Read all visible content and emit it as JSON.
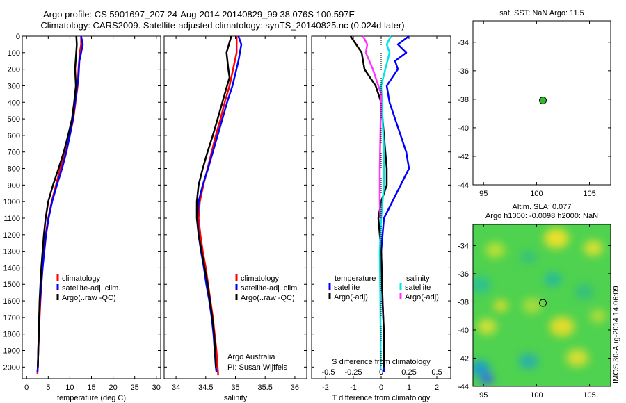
{
  "header": {
    "line1": "Argo profile: CS 5901697_207 24-Aug-2014 20140829_99 38.076S 100.597E",
    "line2": "Climatology: CARS2009. Satellite-adjusted climatology: synTS_20140825.nc (0.024d later)"
  },
  "credit": "IMOS 30-Aug-2014 14:06:09",
  "colors": {
    "red": "#ff0000",
    "blue": "#0000ff",
    "black": "#000000",
    "cyan": "#00e5e5",
    "magenta": "#ff33ff"
  },
  "chart_data": [
    {
      "type": "line",
      "id": "temperature",
      "xlabel": "temperature (deg C)",
      "xlim": [
        -1,
        31
      ],
      "xticks": [
        0,
        5,
        10,
        15,
        20,
        25,
        30
      ],
      "ylim": [
        2070,
        0
      ],
      "yticks": [
        0,
        100,
        200,
        300,
        400,
        500,
        600,
        700,
        800,
        900,
        1000,
        1100,
        1200,
        1300,
        1400,
        1500,
        1600,
        1700,
        1800,
        1900,
        2000
      ],
      "legend": [
        "climatology",
        "satellite-adj. clim.",
        "Argo(..raw -QC)"
      ],
      "series": [
        {
          "name": "climatology",
          "color": "red",
          "points": [
            [
              12.6,
              0
            ],
            [
              12.6,
              50
            ],
            [
              12.3,
              100
            ],
            [
              12.0,
              200
            ],
            [
              11.8,
              300
            ],
            [
              11.3,
              400
            ],
            [
              10.8,
              500
            ],
            [
              10.0,
              600
            ],
            [
              9.0,
              700
            ],
            [
              7.8,
              800
            ],
            [
              6.8,
              900
            ],
            [
              5.8,
              1000
            ],
            [
              5.0,
              1100
            ],
            [
              4.4,
              1200
            ],
            [
              4.0,
              1300
            ],
            [
              3.7,
              1400
            ],
            [
              3.4,
              1500
            ],
            [
              3.2,
              1600
            ],
            [
              3.0,
              1700
            ],
            [
              2.9,
              1800
            ],
            [
              2.7,
              1900
            ],
            [
              2.6,
              2000
            ],
            [
              2.5,
              2040
            ]
          ]
        },
        {
          "name": "satellite-adj. clim.",
          "color": "blue",
          "points": [
            [
              12.6,
              0
            ],
            [
              13.0,
              50
            ],
            [
              12.2,
              150
            ],
            [
              12.0,
              250
            ],
            [
              11.7,
              300
            ],
            [
              11.2,
              400
            ],
            [
              10.7,
              500
            ],
            [
              10.0,
              600
            ],
            [
              9.2,
              700
            ],
            [
              8.2,
              800
            ],
            [
              7.0,
              900
            ],
            [
              5.9,
              1000
            ],
            [
              5.1,
              1100
            ],
            [
              4.5,
              1200
            ],
            [
              4.1,
              1300
            ],
            [
              3.7,
              1400
            ],
            [
              3.4,
              1500
            ],
            [
              3.1,
              1600
            ],
            [
              2.9,
              1700
            ],
            [
              2.8,
              1800
            ],
            [
              2.7,
              1900
            ],
            [
              2.6,
              2000
            ],
            [
              2.5,
              2030
            ]
          ]
        },
        {
          "name": "Argo(..raw -QC)",
          "color": "black",
          "points": [
            [
              11.5,
              0
            ],
            [
              11.6,
              50
            ],
            [
              11.2,
              200
            ],
            [
              11.4,
              300
            ],
            [
              11.0,
              400
            ],
            [
              10.5,
              500
            ],
            [
              9.6,
              600
            ],
            [
              8.6,
              700
            ],
            [
              7.4,
              800
            ],
            [
              6.1,
              900
            ],
            [
              5.0,
              1000
            ],
            [
              4.4,
              1100
            ],
            [
              4.0,
              1200
            ],
            [
              3.7,
              1300
            ],
            [
              3.4,
              1400
            ],
            [
              3.2,
              1500
            ],
            [
              3.0,
              1600
            ],
            [
              2.9,
              1700
            ],
            [
              2.8,
              1800
            ],
            [
              2.7,
              1900
            ],
            [
              2.6,
              2000
            ]
          ]
        }
      ]
    },
    {
      "type": "line",
      "id": "salinity",
      "xlabel": "salinity",
      "xlim": [
        33.8,
        36.2
      ],
      "xticks": [
        34,
        34.5,
        35,
        35.5,
        36
      ],
      "ylim": [
        2070,
        0
      ],
      "legend": [
        "climatology",
        "satellite-adj. clim.",
        "Argo(..raw -QC)"
      ],
      "annotation": [
        "Argo Australia",
        "PI: Susan Wijffels"
      ],
      "series": [
        {
          "name": "climatology",
          "color": "red",
          "points": [
            [
              35.02,
              0
            ],
            [
              35.02,
              100
            ],
            [
              34.96,
              200
            ],
            [
              34.9,
              300
            ],
            [
              34.82,
              400
            ],
            [
              34.75,
              500
            ],
            [
              34.67,
              600
            ],
            [
              34.6,
              700
            ],
            [
              34.53,
              800
            ],
            [
              34.46,
              900
            ],
            [
              34.4,
              1000
            ],
            [
              34.38,
              1100
            ],
            [
              34.41,
              1200
            ],
            [
              34.45,
              1300
            ],
            [
              34.5,
              1400
            ],
            [
              34.54,
              1500
            ],
            [
              34.58,
              1600
            ],
            [
              34.62,
              1700
            ],
            [
              34.65,
              1800
            ],
            [
              34.68,
              1900
            ],
            [
              34.7,
              2000
            ],
            [
              34.71,
              2050
            ]
          ]
        },
        {
          "name": "satellite-adj. clim.",
          "color": "blue",
          "points": [
            [
              35.05,
              0
            ],
            [
              35.1,
              50
            ],
            [
              35.05,
              150
            ],
            [
              34.95,
              300
            ],
            [
              34.86,
              400
            ],
            [
              34.78,
              500
            ],
            [
              34.7,
              600
            ],
            [
              34.62,
              700
            ],
            [
              34.54,
              800
            ],
            [
              34.45,
              900
            ],
            [
              34.38,
              1000
            ],
            [
              34.36,
              1100
            ],
            [
              34.38,
              1200
            ],
            [
              34.42,
              1300
            ],
            [
              34.47,
              1400
            ],
            [
              34.51,
              1500
            ],
            [
              34.56,
              1600
            ],
            [
              34.6,
              1700
            ],
            [
              34.63,
              1800
            ],
            [
              34.65,
              1900
            ],
            [
              34.67,
              2000
            ],
            [
              34.68,
              2030
            ]
          ]
        },
        {
          "name": "Argo(..raw -QC)",
          "color": "black",
          "points": [
            [
              34.93,
              0
            ],
            [
              34.85,
              100
            ],
            [
              34.88,
              200
            ],
            [
              34.9,
              250
            ],
            [
              34.86,
              300
            ],
            [
              34.78,
              400
            ],
            [
              34.7,
              500
            ],
            [
              34.62,
              600
            ],
            [
              34.53,
              700
            ],
            [
              34.45,
              800
            ],
            [
              34.38,
              900
            ],
            [
              34.35,
              1000
            ],
            [
              34.35,
              1100
            ],
            [
              34.38,
              1200
            ],
            [
              34.43,
              1300
            ],
            [
              34.48,
              1400
            ],
            [
              34.53,
              1500
            ],
            [
              34.57,
              1600
            ],
            [
              34.61,
              1700
            ],
            [
              34.64,
              1800
            ],
            [
              34.66,
              1900
            ],
            [
              34.67,
              2000
            ]
          ]
        }
      ]
    },
    {
      "type": "line",
      "id": "difference",
      "xlabel": "T difference from climatology",
      "xlabel2": "S difference from climatology",
      "xlim": [
        -2.5,
        2.5
      ],
      "xticks": [
        -2,
        -1,
        0,
        1,
        2
      ],
      "s_ticks": [
        "-0.5",
        "-0.25",
        "0",
        "0.25",
        "0.5"
      ],
      "ylim": [
        2070,
        0
      ],
      "legend_left_title": "temperature",
      "legend_right_title": "salinity",
      "legend": [
        "satellite",
        "Argo(-adj)",
        "satellite",
        "Argo(-adj)"
      ],
      "series": [
        {
          "name": "temperature satellite",
          "color": "blue",
          "points": [
            [
              1.0,
              0
            ],
            [
              0.6,
              50
            ],
            [
              0.9,
              100
            ],
            [
              0.5,
              150
            ],
            [
              0.6,
              200
            ],
            [
              0.2,
              300
            ],
            [
              0.3,
              400
            ],
            [
              0.5,
              500
            ],
            [
              0.7,
              600
            ],
            [
              0.9,
              700
            ],
            [
              1.0,
              800
            ],
            [
              0.7,
              900
            ],
            [
              0.4,
              1000
            ],
            [
              0.1,
              1100
            ],
            [
              0.0,
              1300
            ],
            [
              0.05,
              1600
            ],
            [
              0.1,
              1800
            ],
            [
              0.1,
              2000
            ],
            [
              0.1,
              2030
            ]
          ]
        },
        {
          "name": "temperature Argo(-adj)",
          "color": "black",
          "points": [
            [
              -1.1,
              0
            ],
            [
              -0.7,
              100
            ],
            [
              -0.6,
              200
            ],
            [
              -0.2,
              300
            ],
            [
              0.0,
              400
            ],
            [
              0.1,
              600
            ],
            [
              0.2,
              800
            ],
            [
              0.2,
              900
            ],
            [
              0.0,
              1000
            ],
            [
              -0.1,
              1100
            ],
            [
              0.0,
              1300
            ],
            [
              0.05,
              1600
            ],
            [
              0.1,
              1800
            ],
            [
              0.1,
              2000
            ]
          ]
        },
        {
          "name": "salinity satellite",
          "color": "cyan",
          "points": [
            [
              0.35,
              0
            ],
            [
              0.2,
              50
            ],
            [
              0.3,
              100
            ],
            [
              0.15,
              200
            ],
            [
              0.0,
              300
            ],
            [
              0.05,
              500
            ],
            [
              0.1,
              700
            ],
            [
              0.1,
              900
            ],
            [
              0.0,
              1100
            ],
            [
              -0.05,
              1300
            ],
            [
              -0.03,
              1600
            ],
            [
              -0.02,
              1800
            ],
            [
              -0.02,
              2020
            ]
          ]
        },
        {
          "name": "salinity Argo(-adj)",
          "color": "magenta",
          "points": [
            [
              -0.65,
              0
            ],
            [
              -0.5,
              50
            ],
            [
              -0.55,
              100
            ],
            [
              -0.3,
              200
            ],
            [
              -0.2,
              250
            ],
            [
              0.0,
              350
            ],
            [
              -0.03,
              600
            ],
            [
              -0.05,
              800
            ],
            [
              -0.05,
              1000
            ],
            [
              -0.03,
              1100
            ]
          ]
        }
      ]
    },
    {
      "type": "scatter",
      "id": "sst_map",
      "title": "sat. SST: NaN Argo: 11.5",
      "xlim": [
        94,
        107
      ],
      "ylim": [
        -44,
        -32.5
      ],
      "xticks": [
        95,
        100,
        105
      ],
      "yticks": [
        -34,
        -36,
        -38,
        -40,
        -42,
        -44
      ],
      "points": [
        {
          "x": 100.6,
          "y": -38.08
        }
      ]
    },
    {
      "type": "heatmap",
      "id": "sla_map",
      "title_lines": [
        "Altim. SLA: 0.077",
        "Argo h1000: -0.0098 h2000: NaN"
      ],
      "xlim": [
        94,
        107
      ],
      "ylim": [
        -44,
        -32.5
      ],
      "xticks": [
        95,
        100,
        105
      ],
      "yticks": [
        -34,
        -36,
        -38,
        -40,
        -42,
        -44
      ],
      "points": [
        {
          "x": 100.6,
          "y": -38.08
        }
      ]
    }
  ]
}
